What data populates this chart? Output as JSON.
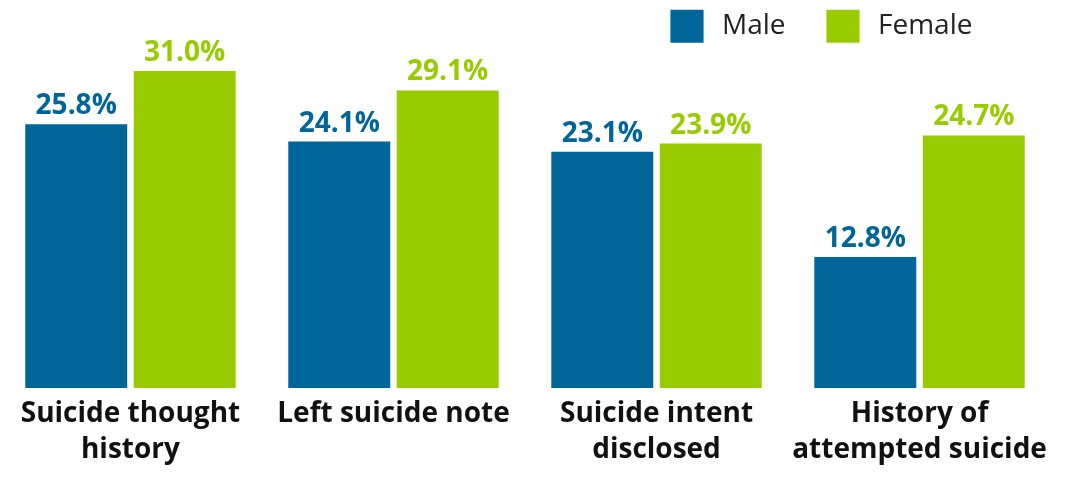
{
  "chart_data": {
    "type": "bar",
    "categories": [
      "Suicide thought history",
      "Left suicide note",
      "Suicide intent disclosed",
      "History of attempted suicide"
    ],
    "series": [
      {
        "name": "Male",
        "color": "#00669a",
        "values": [
          25.8,
          24.1,
          23.1,
          12.8
        ],
        "value_labels": [
          "25.8%",
          "24.1%",
          "23.1%",
          "12.8%"
        ]
      },
      {
        "name": "Female",
        "color": "#99cc00",
        "values": [
          31.0,
          29.1,
          23.9,
          24.7
        ],
        "value_labels": [
          "31.0%",
          "29.1%",
          "23.9%",
          "24.7%"
        ]
      }
    ],
    "legend": "top right"
  }
}
